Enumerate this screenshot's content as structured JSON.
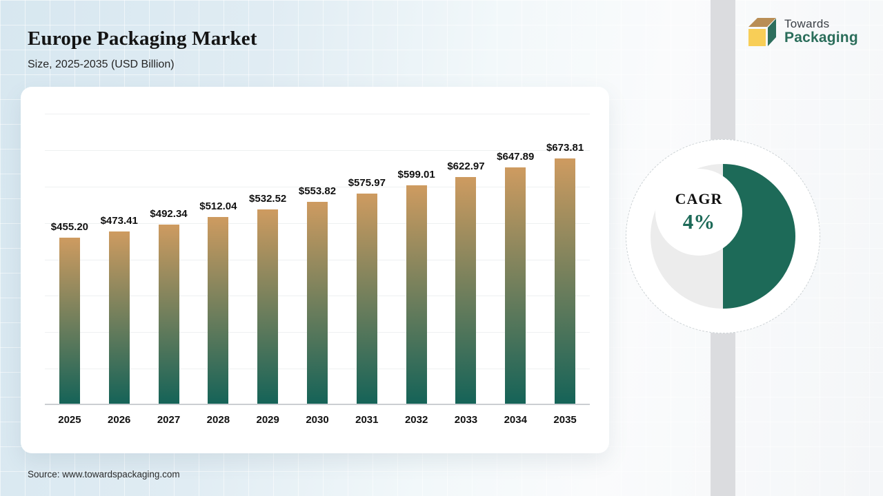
{
  "header": {
    "title": "Europe Packaging Market",
    "subtitle": "Size, 2025-2035 (USD Billion)"
  },
  "logo": {
    "line1": "Towards",
    "line2": "Packaging"
  },
  "chart_data": {
    "type": "bar",
    "title": "Europe Packaging Market Size, 2025-2035 (USD Billion)",
    "categories": [
      "2025",
      "2026",
      "2027",
      "2028",
      "2029",
      "2030",
      "2031",
      "2032",
      "2033",
      "2034",
      "2035"
    ],
    "values": [
      455.2,
      473.41,
      492.34,
      512.04,
      532.52,
      553.82,
      575.97,
      599.01,
      622.97,
      647.89,
      673.81
    ],
    "labels": [
      "$455.20",
      "$473.41",
      "$492.34",
      "$512.04",
      "$532.52",
      "$553.82",
      "$575.97",
      "$599.01",
      "$622.97",
      "$647.89",
      "$673.81"
    ],
    "xlabel": "",
    "ylabel": "",
    "ylim": [
      0,
      800
    ],
    "gridline_step": 100,
    "grid": "horizontal-only, no y tick labels",
    "legend": "none",
    "bar_gradient_top": "#CE9B60",
    "bar_gradient_bottom": "#156358"
  },
  "cagr": {
    "label": "CAGR",
    "value": "4%",
    "fraction": 0.5,
    "fill_color": "#1D6A58",
    "track_color": "#ECECEC"
  },
  "footer": {
    "source": "Source: www.towardspackaging.com"
  },
  "colors": {
    "background_blue": "#D7E7F0",
    "divider_gray": "#DBDCDF",
    "card_white": "#FFFFFF",
    "accent_green": "#2A6D5A",
    "logo_cube_top": "#B98E55",
    "logo_cube_side": "#2D6E5D",
    "logo_cube_front": "#F8CE57"
  }
}
